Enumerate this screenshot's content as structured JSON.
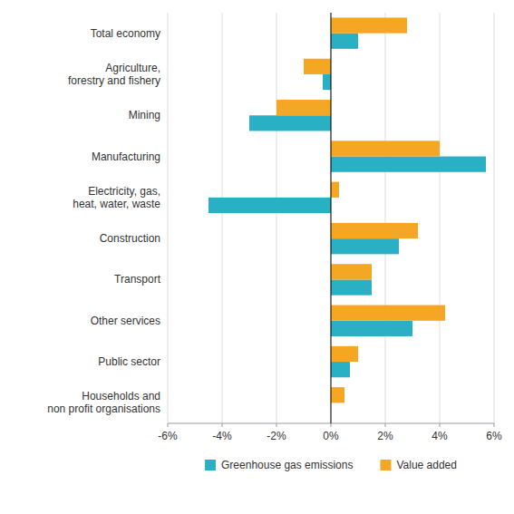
{
  "chart_data": {
    "type": "bar",
    "orientation": "horizontal",
    "categories": [
      "Total economy",
      "Agriculture,\nforestry and fishery",
      "Mining",
      "Manufacturing",
      "Electricity, gas,\nheat, water, waste",
      "Construction",
      "Transport",
      "Other services",
      "Public sector",
      "Households and\nnon profit organisations"
    ],
    "series": [
      {
        "name": "Greenhouse gas emissions",
        "color": "#2ab0c5",
        "values": [
          1.0,
          -0.3,
          -3.0,
          5.7,
          -4.5,
          2.5,
          1.5,
          3.0,
          0.7,
          0.0
        ]
      },
      {
        "name": "Value added",
        "color": "#f5a623",
        "values": [
          2.8,
          -1.0,
          -2.0,
          4.0,
          0.3,
          3.2,
          1.5,
          4.2,
          1.0,
          0.5
        ]
      }
    ],
    "xlim": [
      -6,
      6
    ],
    "xticks": [
      {
        "value": -6,
        "label": "-6%"
      },
      {
        "value": -4,
        "label": "-4%"
      },
      {
        "value": -2,
        "label": "-2%"
      },
      {
        "value": 0,
        "label": "0%"
      },
      {
        "value": 2,
        "label": "2%"
      },
      {
        "value": 4,
        "label": "4%"
      },
      {
        "value": 6,
        "label": "6%"
      }
    ],
    "grid": true,
    "legend": "bottom"
  }
}
